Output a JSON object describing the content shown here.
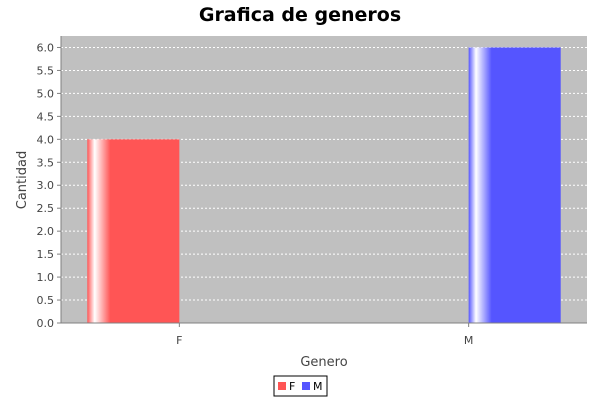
{
  "chart_data": {
    "type": "bar",
    "title": "Grafica de generos",
    "xlabel": "Genero",
    "ylabel": "Cantidad",
    "categories": [
      "F",
      "M"
    ],
    "series": [
      {
        "name": "F",
        "values": [
          4.0,
          null
        ],
        "color": "#ff5555"
      },
      {
        "name": "M",
        "values": [
          null,
          6.0
        ],
        "color": "#5555ff"
      }
    ],
    "ylim": [
      0,
      6.25
    ],
    "yticks": [
      "0.0",
      "0.5",
      "1.0",
      "1.5",
      "2.0",
      "2.5",
      "3.0",
      "3.5",
      "4.0",
      "4.5",
      "5.0",
      "5.5",
      "6.0"
    ],
    "grid": true,
    "legend": "bottom-center",
    "plot_background": "#c0c0c0",
    "gridline_color": "#ffffff"
  }
}
